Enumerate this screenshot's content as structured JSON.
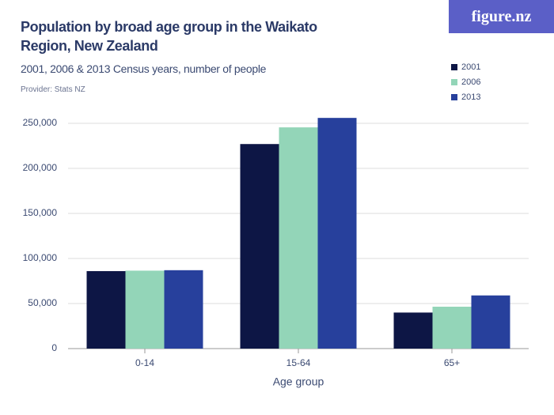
{
  "chart_data": {
    "type": "bar",
    "title": "Population by broad age group in the Waikato Region, New Zealand",
    "subtitle": "2001, 2006 & 2013 Census years, number of people",
    "provider": "Provider: Stats NZ",
    "logo": "figure.nz",
    "x_label": "Age group",
    "categories": [
      "0-14",
      "15-64",
      "65+"
    ],
    "series": [
      {
        "name": "2001",
        "color": "#0d1645",
        "values": [
          86000,
          227000,
          40000
        ]
      },
      {
        "name": "2006",
        "color": "#93d5b8",
        "values": [
          86500,
          245500,
          46500
        ]
      },
      {
        "name": "2013",
        "color": "#27409c",
        "values": [
          87000,
          256000,
          59000
        ]
      }
    ],
    "ylim": [
      0,
      250000
    ],
    "yticks": [
      0,
      {
        "value": 50000,
        "label": "50,000"
      },
      {
        "value": 100000,
        "label": "100,000"
      },
      {
        "value": 150000,
        "label": "150,000"
      },
      {
        "value": 200000,
        "label": "200,000"
      },
      {
        "value": 250000,
        "label": "250,000"
      }
    ],
    "grid": true,
    "legend": "top-right"
  }
}
